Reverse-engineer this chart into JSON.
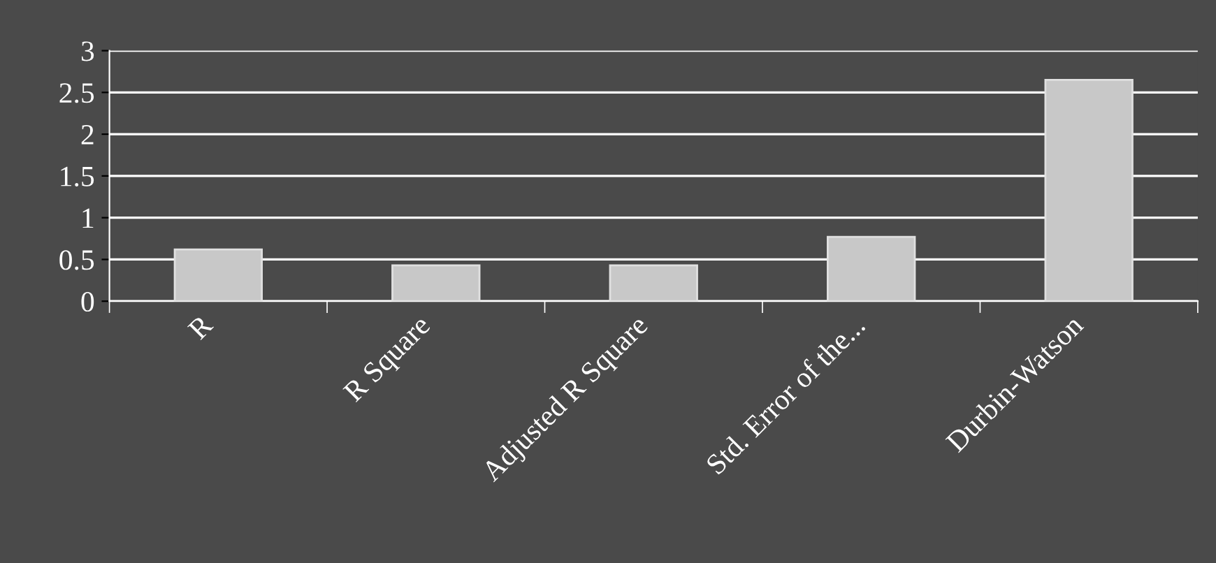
{
  "chart_data": {
    "type": "bar",
    "categories": [
      "R",
      "R Square",
      "Adjusted R Square",
      "Std. Error of the...",
      "Durbin-Watson"
    ],
    "values": [
      0.62,
      0.43,
      0.43,
      0.77,
      2.65
    ],
    "color": "#c8c8c8",
    "ylim": [
      0,
      3
    ],
    "yticks": [
      0,
      0.5,
      1,
      1.5,
      2,
      2.5,
      3
    ],
    "grid": "y"
  }
}
